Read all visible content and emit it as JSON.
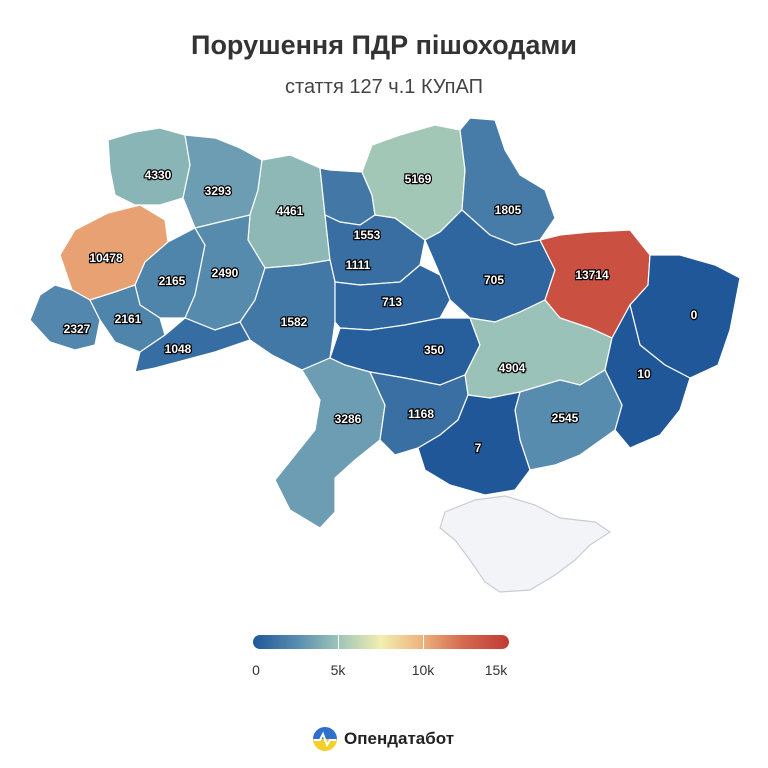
{
  "title": "Порушення ПДР пішоходами",
  "subtitle": "стаття 127 ч.1 КУпАП",
  "colors": {
    "low": "#1f5799",
    "mid": "#f2eeb0",
    "high": "#c03a35",
    "empty": "#f2f4f8"
  },
  "regions": [
    {
      "id": "volyn",
      "value": 4330
    },
    {
      "id": "rivne",
      "value": 3293
    },
    {
      "id": "zhytomyr",
      "value": 4461
    },
    {
      "id": "kyiv-city",
      "value": 1553
    },
    {
      "id": "kyiv-region",
      "value": 1111
    },
    {
      "id": "chernihiv",
      "value": 5169
    },
    {
      "id": "sumy",
      "value": 1805
    },
    {
      "id": "lviv",
      "value": 10478
    },
    {
      "id": "ternopil",
      "value": 2165
    },
    {
      "id": "khmelnytskyi",
      "value": 2490
    },
    {
      "id": "poltava",
      "value": 705
    },
    {
      "id": "kharkiv",
      "value": 13714
    },
    {
      "id": "luhansk",
      "value": 0
    },
    {
      "id": "zakarpattia",
      "value": 2327
    },
    {
      "id": "ivano-frankivsk",
      "value": 2161
    },
    {
      "id": "vinnytsia",
      "value": 1582
    },
    {
      "id": "cherkasy",
      "value": 713
    },
    {
      "id": "chernivtsi",
      "value": 1048
    },
    {
      "id": "kirovohrad",
      "value": 350
    },
    {
      "id": "dnipro",
      "value": 4904
    },
    {
      "id": "donetsk",
      "value": 10
    },
    {
      "id": "odesa",
      "value": 3286
    },
    {
      "id": "mykolaiv",
      "value": 1168
    },
    {
      "id": "zaporizhzhia",
      "value": 2545
    },
    {
      "id": "kherson",
      "value": 7
    }
  ],
  "legend": {
    "labels": [
      "0",
      "5k",
      "10k",
      "15k"
    ],
    "min": 0,
    "max": 15000
  },
  "brand": {
    "name": "Опендатабот"
  }
}
